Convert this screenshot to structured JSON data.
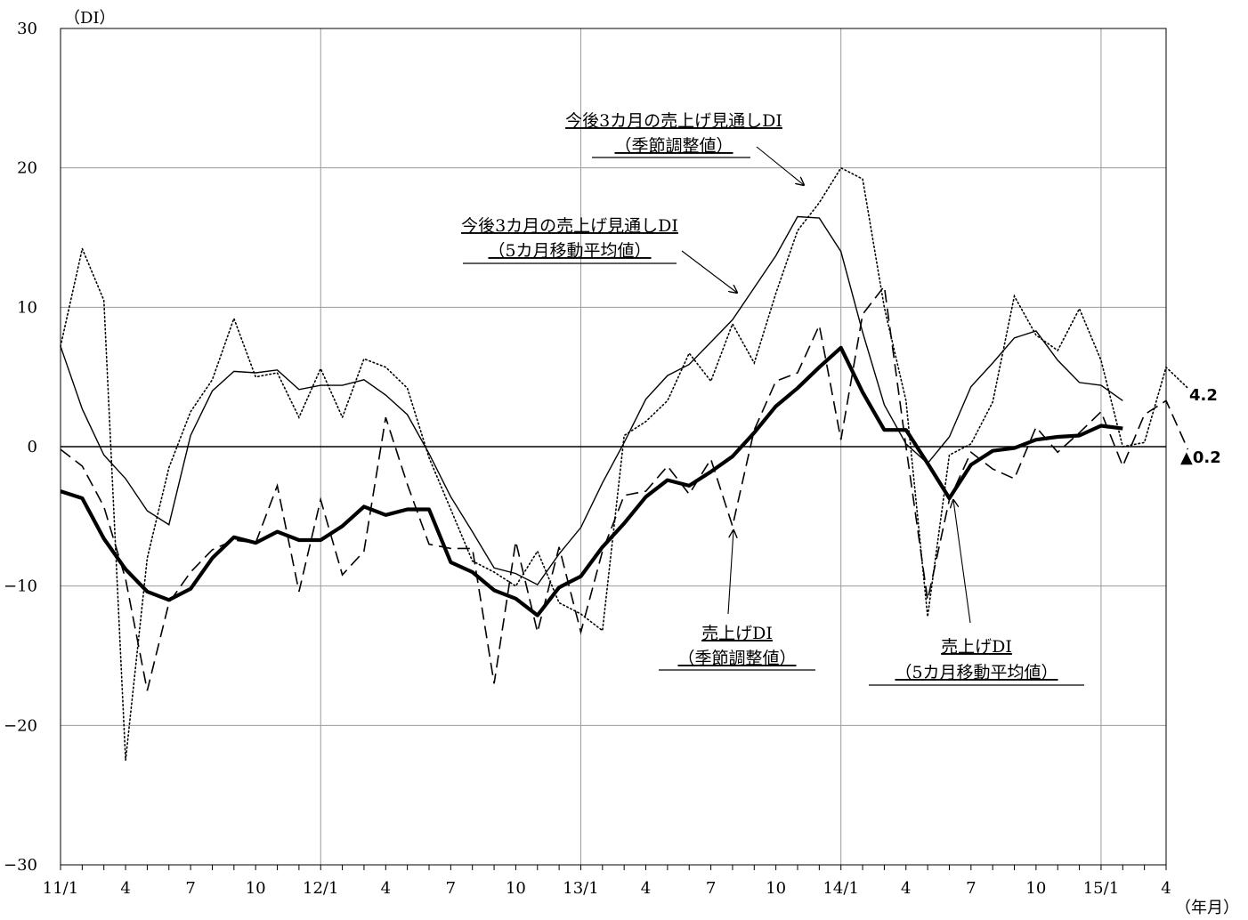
{
  "chart_data": {
    "type": "line",
    "ylabel": "（DI）",
    "xlabel": "（年月）",
    "ylim": [
      -30,
      30
    ],
    "yticks": [
      30,
      20,
      10,
      0,
      -10,
      -20,
      -30
    ],
    "ytick_labels": [
      "30",
      "20",
      "10",
      "0",
      "−10",
      "−20",
      "−30"
    ],
    "x_tick_labels": [
      "11/1",
      "4",
      "7",
      "10",
      "12/1",
      "4",
      "7",
      "10",
      "13/1",
      "4",
      "7",
      "10",
      "14/1",
      "4",
      "7",
      "10",
      "15/1",
      "4"
    ],
    "grid": true,
    "series": [
      {
        "name": "今後3カ月の売上げ見通しDI（季節調整値）",
        "style": "dotted",
        "values": [
          7.2,
          14.2,
          10.5,
          -22.5,
          -8.0,
          -1.5,
          2.5,
          4.8,
          9.2,
          5.0,
          5.3,
          2.1,
          5.6,
          2.1,
          6.3,
          5.7,
          4.2,
          -0.8,
          -4.5,
          -8.2,
          -9.0,
          -10.0,
          -7.5,
          -11.2,
          -12.0,
          -13.2,
          0.8,
          1.8,
          3.3,
          6.7,
          4.7,
          8.8,
          6.0,
          11.0,
          15.5,
          17.5,
          20.0,
          19.2,
          10.0,
          3.3,
          -12.2,
          -0.6,
          0.2,
          3.2,
          10.8,
          8.0,
          6.9,
          9.9,
          6.2,
          0.0,
          0.3,
          5.7,
          4.2
        ]
      },
      {
        "name": "今後3カ月の売上げ見通しDI（5カ月移動平均値）",
        "style": "thin-solid",
        "values": [
          7.2,
          2.7,
          -0.6,
          -2.3,
          -4.6,
          -5.6,
          0.8,
          4.0,
          5.4,
          5.3,
          5.5,
          4.1,
          4.4,
          4.4,
          4.8,
          3.7,
          2.3,
          -0.5,
          -3.6,
          -6.1,
          -8.7,
          -9.1,
          -9.9,
          -7.7,
          -5.8,
          -2.6,
          0.3,
          3.4,
          5.1,
          5.9,
          7.5,
          9.1,
          11.4,
          13.7,
          16.5,
          16.4,
          14.0,
          8.2,
          3.0,
          0.2,
          -1.2,
          0.7,
          4.3,
          6.0,
          7.8,
          8.3,
          6.2,
          4.6,
          4.4,
          3.3
        ]
      },
      {
        "name": "売上げDI（季節調整値）",
        "style": "dashed",
        "values": [
          -0.2,
          -1.4,
          -4.3,
          -9.5,
          -17.5,
          -11.2,
          -9.0,
          -7.4,
          -6.7,
          -6.9,
          -2.8,
          -10.4,
          -3.8,
          -9.2,
          -7.5,
          2.1,
          -2.7,
          -7.0,
          -7.3,
          -7.3,
          -17.0,
          -6.8,
          -13.3,
          -7.2,
          -13.3,
          -7.5,
          -3.5,
          -3.2,
          -1.4,
          -3.4,
          -0.9,
          -5.7,
          1.2,
          4.7,
          5.3,
          8.7,
          0.5,
          9.5,
          11.5,
          0.0,
          -11.0,
          -3.8,
          -0.4,
          -1.6,
          -2.3,
          1.4,
          -0.4,
          1.0,
          2.5,
          -1.4,
          2.3,
          3.3,
          -0.2
        ]
      },
      {
        "name": "売上げDI（5カ月移動平均値）",
        "style": "thick-solid",
        "values": [
          -3.2,
          -3.7,
          -6.6,
          -8.8,
          -10.4,
          -11.0,
          -10.2,
          -8.0,
          -6.5,
          -6.9,
          -6.1,
          -6.7,
          -6.7,
          -5.7,
          -4.3,
          -4.9,
          -4.5,
          -4.5,
          -8.3,
          -9.0,
          -10.3,
          -10.9,
          -12.1,
          -10.1,
          -9.3,
          -7.2,
          -5.5,
          -3.6,
          -2.4,
          -2.8,
          -1.8,
          -0.7,
          1.0,
          2.9,
          4.2,
          5.7,
          7.1,
          3.9,
          1.2,
          1.2,
          -1.2,
          -3.7,
          -1.3,
          -0.3,
          -0.1,
          0.5,
          0.7,
          0.8,
          1.5,
          1.3
        ]
      }
    ],
    "end_labels": [
      "4.2",
      "▲0.2"
    ],
    "annotations": [
      {
        "line1": "今後3カ月の売上げ見通しDI",
        "line2": "（季節調整値）"
      },
      {
        "line1": "今後3カ月の売上げ見通しDI",
        "line2": "（5カ月移動平均値）"
      },
      {
        "line1": "売上げDI",
        "line2": "（季節調整値）"
      },
      {
        "line1": "売上げDI",
        "line2": "（5カ月移動平均値）"
      }
    ]
  }
}
